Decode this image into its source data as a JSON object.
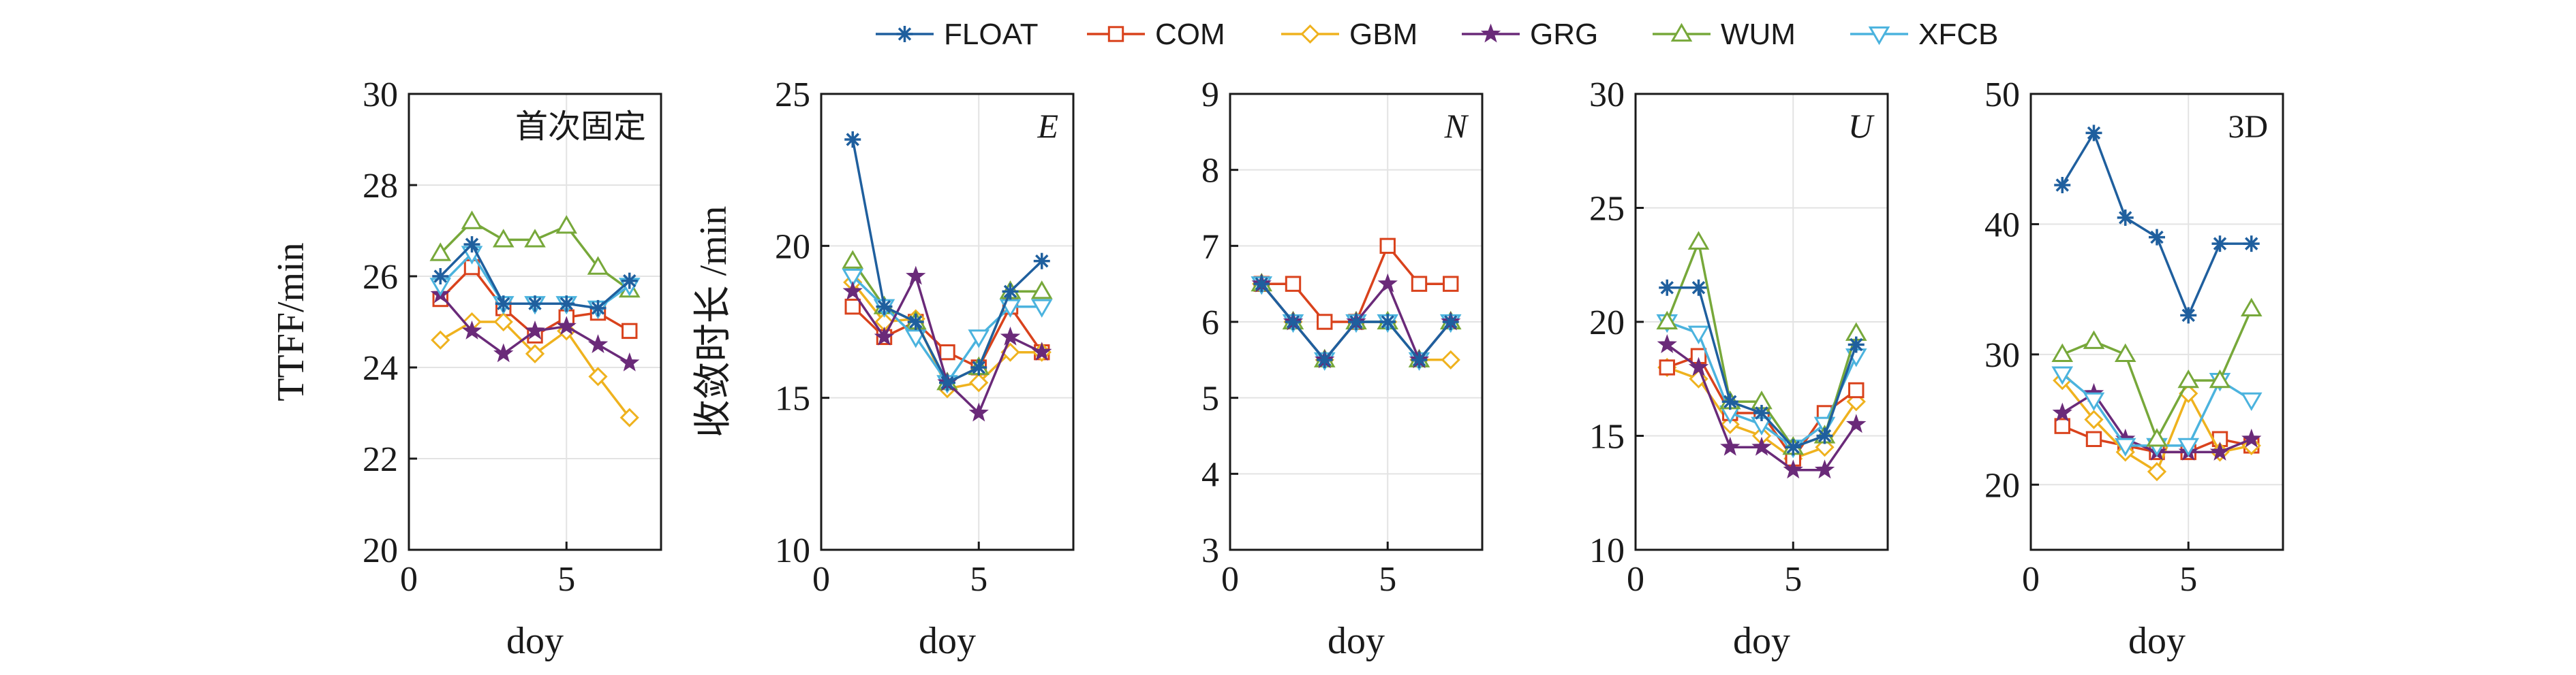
{
  "legend": {
    "position": "top-center",
    "entries": [
      {
        "name": "FLOAT",
        "color": "#1f5f9e",
        "marker": "asterisk"
      },
      {
        "name": "COM",
        "color": "#d9421c",
        "marker": "square"
      },
      {
        "name": "GBM",
        "color": "#efb21e",
        "marker": "diamond"
      },
      {
        "name": "GRG",
        "color": "#6a2a79",
        "marker": "star"
      },
      {
        "name": "WUM",
        "color": "#77a83a",
        "marker": "triangle-up"
      },
      {
        "name": "XFCB",
        "color": "#4bb3de",
        "marker": "triangle-down"
      }
    ]
  },
  "chart_data": [
    {
      "type": "line",
      "panel_label": "首次固定",
      "ylabel": "TTFF/min",
      "xlabel": "doy",
      "xlim": [
        0,
        8
      ],
      "xticks": [
        0,
        5
      ],
      "ylim": [
        20,
        30
      ],
      "yticks": [
        20,
        22,
        24,
        26,
        28,
        30
      ],
      "grid": true,
      "x": [
        1,
        2,
        3,
        4,
        5,
        6,
        7
      ],
      "series": [
        {
          "name": "COM",
          "values": [
            25.5,
            26.2,
            25.3,
            24.7,
            25.1,
            25.2,
            24.8
          ]
        },
        {
          "name": "GBM",
          "values": [
            24.6,
            25.0,
            25.0,
            24.3,
            24.8,
            23.8,
            22.9
          ]
        },
        {
          "name": "GRG",
          "values": [
            25.6,
            24.8,
            24.3,
            24.8,
            24.9,
            24.5,
            24.1
          ]
        },
        {
          "name": "WUM",
          "values": [
            26.5,
            27.2,
            26.8,
            26.8,
            27.1,
            26.2,
            25.7
          ]
        },
        {
          "name": "XFCB",
          "values": [
            25.8,
            26.5,
            25.4,
            25.4,
            25.4,
            25.3,
            25.8
          ]
        },
        {
          "name": "FLOAT",
          "values": [
            26.0,
            26.7,
            25.4,
            25.4,
            25.4,
            25.3,
            25.9
          ]
        }
      ]
    },
    {
      "type": "line",
      "panel_label": "E",
      "ylabel": "收敛时长 /min",
      "xlabel": "doy",
      "xlim": [
        0,
        8
      ],
      "xticks": [
        0,
        5
      ],
      "ylim": [
        10,
        25
      ],
      "yticks": [
        10,
        15,
        20,
        25
      ],
      "grid": true,
      "x": [
        1,
        2,
        3,
        4,
        5,
        6,
        7
      ],
      "series": [
        {
          "name": "COM",
          "values": [
            18.0,
            17.0,
            17.5,
            16.5,
            16.0,
            18.0,
            16.5
          ]
        },
        {
          "name": "GBM",
          "values": [
            18.8,
            17.5,
            17.6,
            15.3,
            15.5,
            16.5,
            16.5
          ]
        },
        {
          "name": "WUM",
          "values": [
            19.5,
            18.0,
            17.5,
            15.5,
            16.0,
            18.5,
            18.5
          ]
        },
        {
          "name": "XFCB",
          "values": [
            19.0,
            18.0,
            17.0,
            15.5,
            17.0,
            18.0,
            18.0
          ]
        },
        {
          "name": "GRG",
          "values": [
            18.5,
            17.0,
            19.0,
            15.5,
            14.5,
            17.0,
            16.5
          ]
        },
        {
          "name": "FLOAT",
          "values": [
            23.5,
            18.0,
            17.5,
            15.5,
            16.0,
            18.5,
            19.5
          ]
        }
      ]
    },
    {
      "type": "line",
      "panel_label": "N",
      "ylabel": "",
      "xlabel": "doy",
      "xlim": [
        0,
        8
      ],
      "xticks": [
        0,
        5
      ],
      "ylim": [
        3,
        9
      ],
      "yticks": [
        3,
        4,
        5,
        6,
        7,
        8,
        9
      ],
      "grid": true,
      "x": [
        1,
        2,
        3,
        4,
        5,
        6,
        7
      ],
      "series": [
        {
          "name": "GBM",
          "values": [
            6.5,
            6.0,
            5.5,
            6.0,
            6.0,
            5.5,
            5.5
          ]
        },
        {
          "name": "COM",
          "values": [
            6.5,
            6.5,
            6.0,
            6.0,
            7.0,
            6.5,
            6.5
          ]
        },
        {
          "name": "WUM",
          "values": [
            6.5,
            6.0,
            5.5,
            6.0,
            6.0,
            5.5,
            6.0
          ]
        },
        {
          "name": "XFCB",
          "values": [
            6.5,
            6.0,
            5.5,
            6.0,
            6.0,
            5.5,
            6.0
          ]
        },
        {
          "name": "GRG",
          "values": [
            6.5,
            6.0,
            5.5,
            6.0,
            6.5,
            5.5,
            6.0
          ]
        },
        {
          "name": "FLOAT",
          "values": [
            6.5,
            6.0,
            5.5,
            6.0,
            6.0,
            5.5,
            6.0
          ]
        }
      ]
    },
    {
      "type": "line",
      "panel_label": "U",
      "ylabel": "",
      "xlabel": "doy",
      "xlim": [
        0,
        8
      ],
      "xticks": [
        0,
        5
      ],
      "ylim": [
        10,
        30
      ],
      "yticks": [
        10,
        15,
        20,
        25,
        30
      ],
      "grid": true,
      "x": [
        1,
        2,
        3,
        4,
        5,
        6,
        7
      ],
      "series": [
        {
          "name": "GBM",
          "values": [
            18.0,
            17.5,
            15.5,
            15.0,
            14.0,
            14.5,
            16.5
          ]
        },
        {
          "name": "COM",
          "values": [
            18.0,
            18.5,
            16.0,
            16.0,
            14.0,
            16.0,
            17.0
          ]
        },
        {
          "name": "XFCB",
          "values": [
            20.0,
            19.5,
            16.0,
            15.5,
            14.5,
            15.5,
            18.5
          ]
        },
        {
          "name": "GRG",
          "values": [
            19.0,
            18.0,
            14.5,
            14.5,
            13.5,
            13.5,
            15.5
          ]
        },
        {
          "name": "WUM",
          "values": [
            20.0,
            23.5,
            16.5,
            16.5,
            14.5,
            15.0,
            19.5
          ]
        },
        {
          "name": "FLOAT",
          "values": [
            21.5,
            21.5,
            16.5,
            16.0,
            14.5,
            15.0,
            19.0
          ]
        }
      ]
    },
    {
      "type": "line",
      "panel_label": "3D",
      "ylabel": "",
      "xlabel": "doy",
      "xlim": [
        0,
        8
      ],
      "xticks": [
        0,
        5
      ],
      "ylim": [
        15,
        50
      ],
      "yticks": [
        20,
        30,
        40,
        50
      ],
      "grid": true,
      "x": [
        1,
        2,
        3,
        4,
        5,
        6,
        7
      ],
      "series": [
        {
          "name": "COM",
          "values": [
            24.5,
            23.5,
            23.0,
            22.5,
            22.5,
            23.5,
            23.0
          ]
        },
        {
          "name": "GBM",
          "values": [
            28.0,
            25.0,
            22.5,
            21.0,
            27.0,
            22.5,
            23.0
          ]
        },
        {
          "name": "GRG",
          "values": [
            25.5,
            27.0,
            23.5,
            22.5,
            22.5,
            22.5,
            23.5
          ]
        },
        {
          "name": "XFCB",
          "values": [
            28.5,
            26.5,
            23.0,
            23.0,
            23.0,
            28.0,
            26.5
          ]
        },
        {
          "name": "WUM",
          "values": [
            30.0,
            31.0,
            30.0,
            23.5,
            28.0,
            28.0,
            33.5
          ]
        },
        {
          "name": "FLOAT",
          "values": [
            43.0,
            47.0,
            40.5,
            39.0,
            33.0,
            38.5,
            38.5
          ]
        }
      ]
    }
  ]
}
